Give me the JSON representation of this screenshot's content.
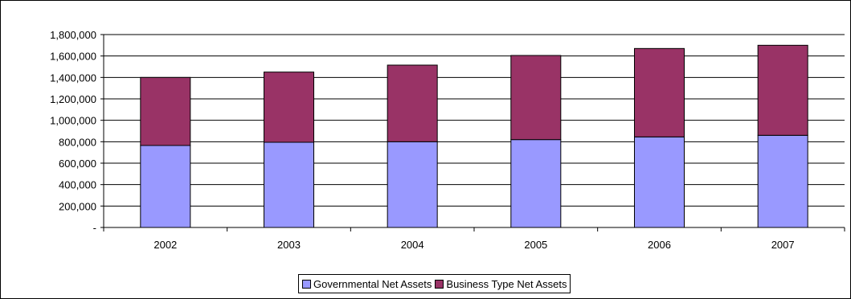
{
  "chart_data": {
    "type": "bar",
    "stacked": true,
    "categories": [
      "2002",
      "2003",
      "2004",
      "2005",
      "2006",
      "2007"
    ],
    "series": [
      {
        "name": "Governmental Net Assets",
        "color": "#9999ff",
        "values": [
          765000,
          795000,
          800000,
          820000,
          845000,
          860000
        ]
      },
      {
        "name": "Business Type Net Assets",
        "color": "#993366",
        "values": [
          635000,
          655000,
          715000,
          785000,
          825000,
          840000
        ]
      }
    ],
    "ylim": [
      0,
      1800000
    ],
    "y_ticks": [
      0,
      200000,
      400000,
      600000,
      800000,
      1000000,
      1200000,
      1400000,
      1600000,
      1800000
    ],
    "y_tick_labels": [
      "-",
      "200,000",
      "400,000",
      "600,000",
      "800,000",
      "1,000,000",
      "1,200,000",
      "1,400,000",
      "1,600,000",
      "1,800,000"
    ],
    "grid": true,
    "legend_position": "bottom",
    "title": "",
    "xlabel": "",
    "ylabel": ""
  }
}
